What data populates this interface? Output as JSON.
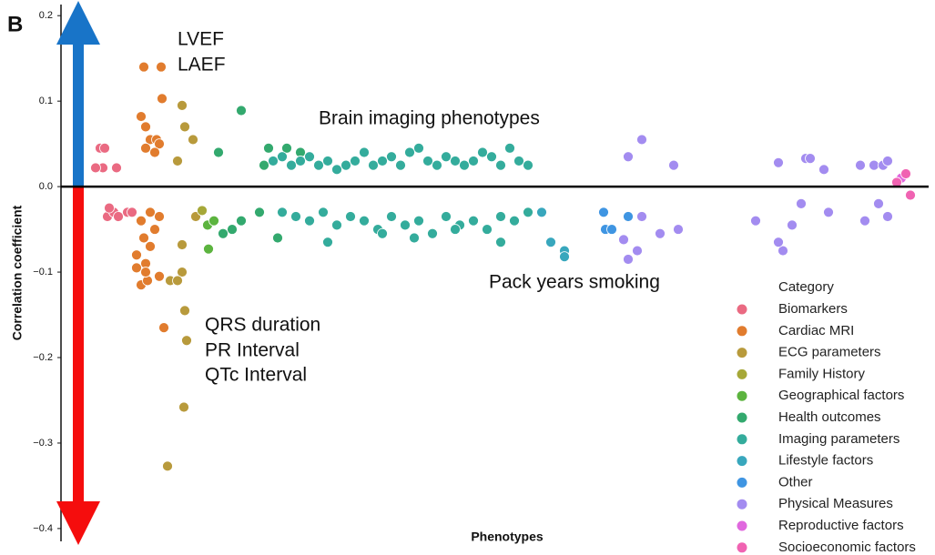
{
  "chart_data": {
    "type": "scatter",
    "panel_label": "B",
    "y_label": "Correlation coefficient",
    "x_label": "Phenotypes",
    "legend_title": "Category",
    "legend_position": "lower right",
    "annotations": [
      "LVEF",
      "LAEF",
      "Brain imaging phenotypes",
      "Pack years smoking",
      "QRS duration",
      "PR Interval",
      "QTc Interval"
    ],
    "xlim": [
      0,
      925
    ],
    "ylim": [
      -0.415,
      0.213
    ],
    "yticks": [
      {
        "value": 0.2,
        "label": "0.2"
      },
      {
        "value": 0.1,
        "label": "0.1"
      },
      {
        "value": 0,
        "label": "0.0"
      },
      {
        "value": -0.1,
        "label": "−0.1"
      },
      {
        "value": -0.2,
        "label": "−0.2"
      },
      {
        "value": -0.3,
        "label": "−0.3"
      },
      {
        "value": -0.4,
        "label": "−0.4"
      }
    ],
    "series": [
      {
        "name": "Biomarkers",
        "color": "#ea6a82",
        "x": [
          10,
          15,
          13,
          28,
          5,
          18,
          25,
          30,
          40,
          45,
          20
        ],
        "values": [
          0.045,
          0.045,
          0.022,
          0.022,
          0.022,
          -0.035,
          -0.03,
          -0.035,
          -0.03,
          -0.03,
          -0.025
        ]
      },
      {
        "name": "Cardiac MRI",
        "color": "#e17c2e",
        "x": [
          58,
          77,
          78,
          55,
          60,
          65,
          72,
          75,
          60,
          70,
          55,
          62,
          75,
          80,
          50,
          60,
          65,
          58,
          70,
          55,
          75,
          65,
          50,
          60
        ],
        "values": [
          0.14,
          0.14,
          0.103,
          0.082,
          0.07,
          0.055,
          0.055,
          0.05,
          0.045,
          0.04,
          -0.115,
          -0.11,
          -0.105,
          -0.165,
          -0.08,
          -0.09,
          -0.07,
          -0.06,
          -0.05,
          -0.04,
          -0.035,
          -0.03,
          -0.095,
          -0.1
        ]
      },
      {
        "name": "ECG parameters",
        "color": "#b89a3c",
        "x": [
          100,
          103,
          112,
          95,
          115,
          100,
          87,
          100,
          95,
          103,
          105,
          102,
          84
        ],
        "values": [
          0.095,
          0.07,
          0.055,
          0.03,
          -0.035,
          -0.068,
          -0.11,
          -0.1,
          -0.11,
          -0.145,
          -0.18,
          -0.258,
          -0.327
        ]
      },
      {
        "name": "Family History",
        "color": "#a6a838",
        "x": [
          122
        ],
        "values": [
          -0.028
        ]
      },
      {
        "name": "Geographical factors",
        "color": "#5cb43f",
        "x": [
          129,
          128,
          135
        ],
        "values": [
          -0.073,
          -0.045,
          -0.04
        ]
      },
      {
        "name": "Health outcomes",
        "color": "#33a96e",
        "x": [
          165,
          140,
          195,
          215,
          200,
          190,
          230,
          155,
          165,
          145,
          205,
          185
        ],
        "values": [
          0.089,
          0.04,
          0.045,
          0.045,
          0.03,
          0.025,
          0.04,
          -0.05,
          -0.04,
          -0.055,
          -0.06,
          -0.03
        ]
      },
      {
        "name": "Imaging parameters",
        "color": "#34ac9c",
        "x": [
          200,
          210,
          220,
          230,
          240,
          250,
          260,
          270,
          280,
          290,
          300,
          310,
          320,
          330,
          340,
          350,
          360,
          370,
          380,
          390,
          400,
          410,
          420,
          430,
          440,
          450,
          460,
          470,
          480,
          210,
          225,
          240,
          255,
          270,
          285,
          300,
          315,
          330,
          345,
          360,
          375,
          390,
          405,
          420,
          435,
          450,
          465,
          480,
          260,
          320,
          355,
          400,
          450
        ],
        "values": [
          0.03,
          0.035,
          0.025,
          0.03,
          0.035,
          0.025,
          0.03,
          0.02,
          0.025,
          0.03,
          0.04,
          0.025,
          0.03,
          0.035,
          0.025,
          0.04,
          0.045,
          0.03,
          0.025,
          0.035,
          0.03,
          0.025,
          0.03,
          0.04,
          0.035,
          0.025,
          0.045,
          0.03,
          0.025,
          -0.03,
          -0.035,
          -0.04,
          -0.03,
          -0.045,
          -0.035,
          -0.04,
          -0.05,
          -0.035,
          -0.045,
          -0.04,
          -0.055,
          -0.035,
          -0.045,
          -0.04,
          -0.05,
          -0.035,
          -0.04,
          -0.03,
          -0.065,
          -0.055,
          -0.06,
          -0.05,
          -0.065
        ]
      },
      {
        "name": "Lifestyle factors",
        "color": "#38a7bd",
        "x": [
          495,
          520,
          520,
          505
        ],
        "values": [
          -0.03,
          -0.075,
          -0.082,
          -0.065
        ]
      },
      {
        "name": "Other",
        "color": "#3f95e2",
        "x": [
          563,
          565,
          572,
          590
        ],
        "values": [
          -0.03,
          -0.05,
          -0.05,
          -0.035
        ]
      },
      {
        "name": "Physical Measures",
        "color": "#a38cf0",
        "x": [
          605,
          590,
          640,
          585,
          590,
          600,
          605,
          625,
          645,
          730,
          755,
          760,
          755,
          770,
          785,
          790,
          780,
          805,
          810,
          845,
          860,
          870,
          875,
          865,
          875,
          850
        ],
        "values": [
          0.055,
          0.035,
          0.025,
          -0.062,
          -0.085,
          -0.075,
          -0.035,
          -0.055,
          -0.05,
          -0.04,
          0.028,
          -0.075,
          -0.065,
          -0.045,
          0.033,
          0.033,
          -0.02,
          0.02,
          -0.03,
          0.025,
          0.025,
          0.025,
          0.03,
          -0.02,
          -0.035,
          -0.04
        ]
      },
      {
        "name": "Reproductive factors",
        "color": "#e068de",
        "x": [
          890
        ],
        "values": [
          0.01
        ]
      },
      {
        "name": "Socioeconomic factors",
        "color": "#f063b2",
        "x": [
          895,
          900,
          885
        ],
        "values": [
          0.015,
          -0.01,
          0.005
        ]
      }
    ]
  }
}
